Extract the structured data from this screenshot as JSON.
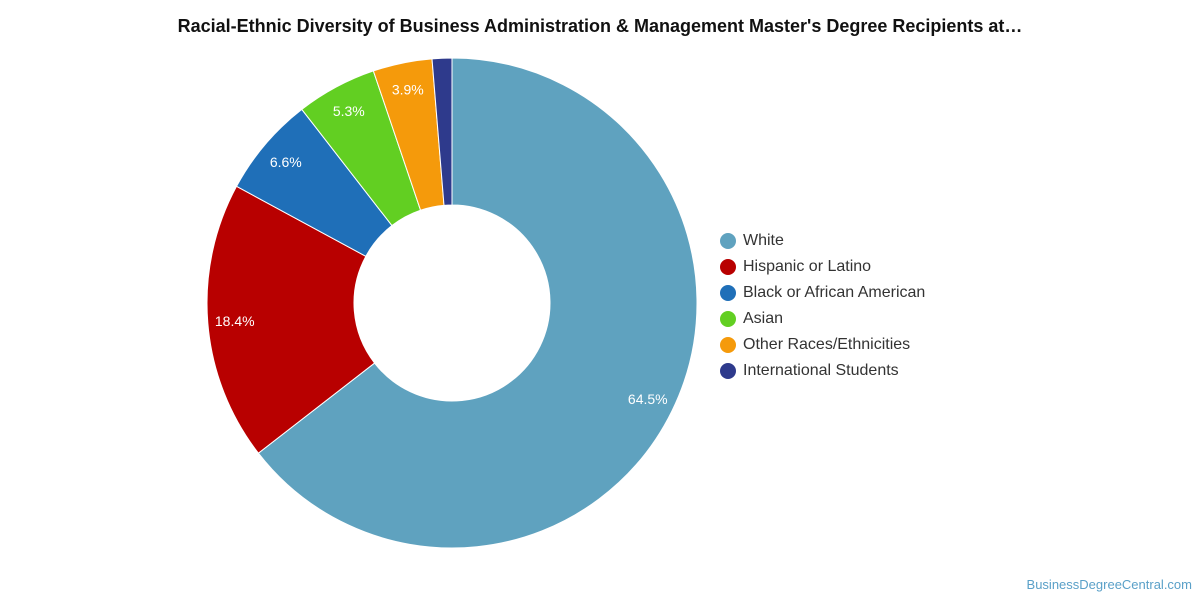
{
  "title": "Racial-Ethnic Diversity of Business Administration & Management Master's Degree Recipients at…",
  "credit": "BusinessDegreeCentral.com",
  "chart_data": {
    "type": "pie",
    "donut": true,
    "title": "Racial-Ethnic Diversity of Business Administration & Management Master's Degree Recipients at…",
    "legend_position": "right",
    "categories": [
      "White",
      "Hispanic or Latino",
      "Black or African American",
      "Asian",
      "Other Races/Ethnicities",
      "International Students"
    ],
    "values": [
      64.5,
      18.4,
      6.6,
      5.3,
      3.9,
      1.3
    ],
    "labels": [
      "64.5%",
      "18.4%",
      "6.6%",
      "5.3%",
      "3.9%",
      ""
    ],
    "colors": [
      "#5fa2bf",
      "#b80000",
      "#1f6fb8",
      "#62cf22",
      "#f59a0b",
      "#2e3a8c"
    ]
  }
}
